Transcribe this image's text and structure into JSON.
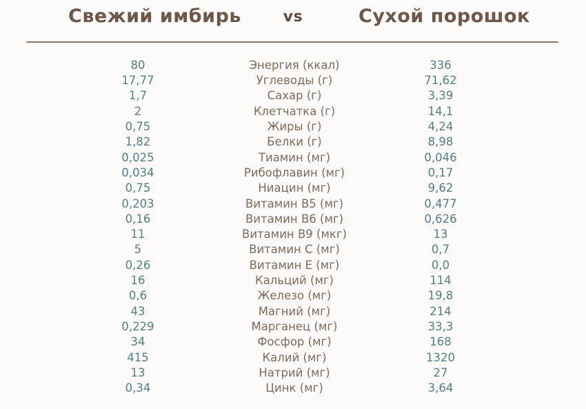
{
  "page": {
    "background": "#fbfaf8"
  },
  "header": {
    "left_title": "Свежий имбирь",
    "vs_label": "vs",
    "right_title": "Сухой порошок"
  },
  "colors": {
    "background": "#fbfaf8",
    "title": "#6d574a",
    "vs": "#604c3f",
    "nutrient_label": "#7d6a5d",
    "value": "#538080",
    "divider": "#8b7365"
  },
  "chart_data": {
    "type": "table",
    "title": "Свежий имбирь vs Сухой порошок",
    "columns": [
      "Свежий имбирь",
      "Сухой порошок"
    ],
    "rows": [
      {
        "fresh": "80",
        "nutrient": "Энергия (ккал)",
        "dry": "336"
      },
      {
        "fresh": "17,77",
        "nutrient": "Углеводы (г)",
        "dry": "71,62"
      },
      {
        "fresh": "1,7",
        "nutrient": "Сахар (г)",
        "dry": "3,39"
      },
      {
        "fresh": "2",
        "nutrient": "Клетчатка (г)",
        "dry": "14,1"
      },
      {
        "fresh": "0,75",
        "nutrient": "Жиры (г)",
        "dry": "4,24"
      },
      {
        "fresh": "1,82",
        "nutrient": "Белки (г)",
        "dry": "8,98"
      },
      {
        "fresh": "0,025",
        "nutrient": "Тиамин (мг)",
        "dry": "0,046"
      },
      {
        "fresh": "0,034",
        "nutrient": "Рибофлавин (мг)",
        "dry": "0,17"
      },
      {
        "fresh": "0,75",
        "nutrient": "Ниацин (мг)",
        "dry": "9,62"
      },
      {
        "fresh": "0,203",
        "nutrient": "Витамин B5 (мг)",
        "dry": "0,477"
      },
      {
        "fresh": "0,16",
        "nutrient": "Витамин B6 (мг)",
        "dry": "0,626"
      },
      {
        "fresh": "11",
        "nutrient": "Витамин B9 (мкг)",
        "dry": "13"
      },
      {
        "fresh": "5",
        "nutrient": "Витамин C (мг)",
        "dry": "0,7"
      },
      {
        "fresh": "0,26",
        "nutrient": "Витамин E (мг)",
        "dry": "0,0"
      },
      {
        "fresh": "16",
        "nutrient": "Кальций (мг)",
        "dry": "114"
      },
      {
        "fresh": "0,6",
        "nutrient": "Железо (мг)",
        "dry": "19,8"
      },
      {
        "fresh": "43",
        "nutrient": "Магний (мг)",
        "dry": "214"
      },
      {
        "fresh": "0,229",
        "nutrient": "Марганец (мг)",
        "dry": "33,3"
      },
      {
        "fresh": "34",
        "nutrient": "Фосфор (мг)",
        "dry": "168"
      },
      {
        "fresh": "415",
        "nutrient": "Калий (мг)",
        "dry": "1320"
      },
      {
        "fresh": "13",
        "nutrient": "Натрий (мг)",
        "dry": "27"
      },
      {
        "fresh": "0,34",
        "nutrient": "Цинк (мг)",
        "dry": "3,64"
      }
    ]
  }
}
